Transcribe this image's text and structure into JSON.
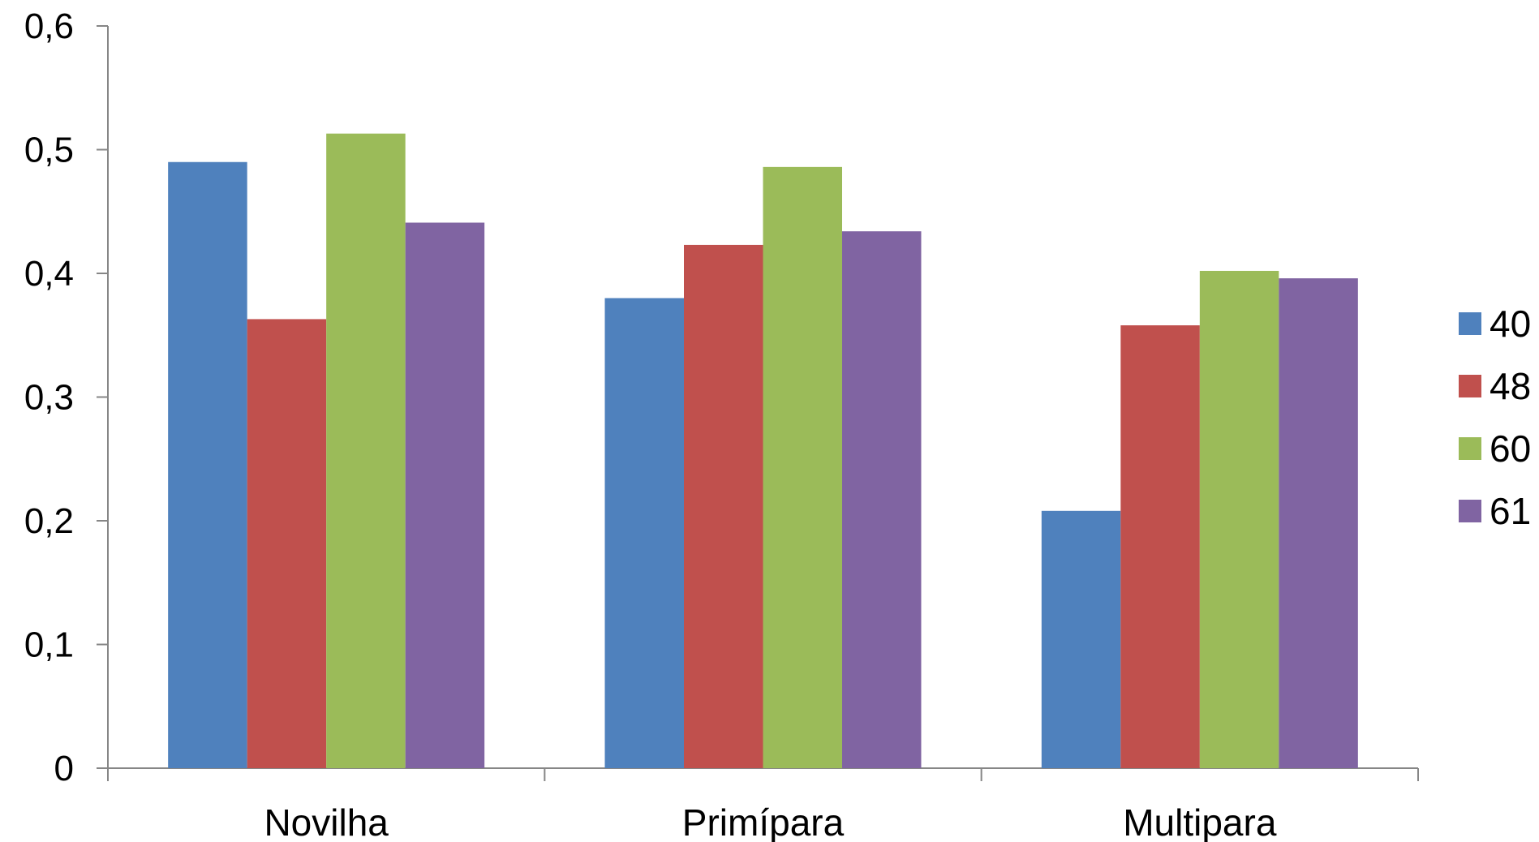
{
  "chart_data": {
    "type": "bar",
    "title": "",
    "xlabel": "",
    "ylabel": "",
    "categories": [
      "Novilha",
      "Primípara",
      "Multipara"
    ],
    "series": [
      {
        "name": "40",
        "color": "#4F81BD",
        "values": [
          0.49,
          0.38,
          0.208
        ]
      },
      {
        "name": "48",
        "color": "#C0504D",
        "values": [
          0.363,
          0.423,
          0.358
        ]
      },
      {
        "name": "60",
        "color": "#9BBB59",
        "values": [
          0.513,
          0.486,
          0.402
        ]
      },
      {
        "name": "61",
        "color": "#8064A2",
        "values": [
          0.441,
          0.434,
          0.396
        ]
      }
    ],
    "ylim": [
      0,
      0.6
    ],
    "yticks": [
      0,
      0.1,
      0.2,
      0.3,
      0.4,
      0.5,
      0.6
    ],
    "ytick_labels": [
      "0",
      "0,1",
      "0,2",
      "0,3",
      "0,4",
      "0,5",
      "0,6"
    ],
    "grid": false,
    "legend_position": "right"
  }
}
